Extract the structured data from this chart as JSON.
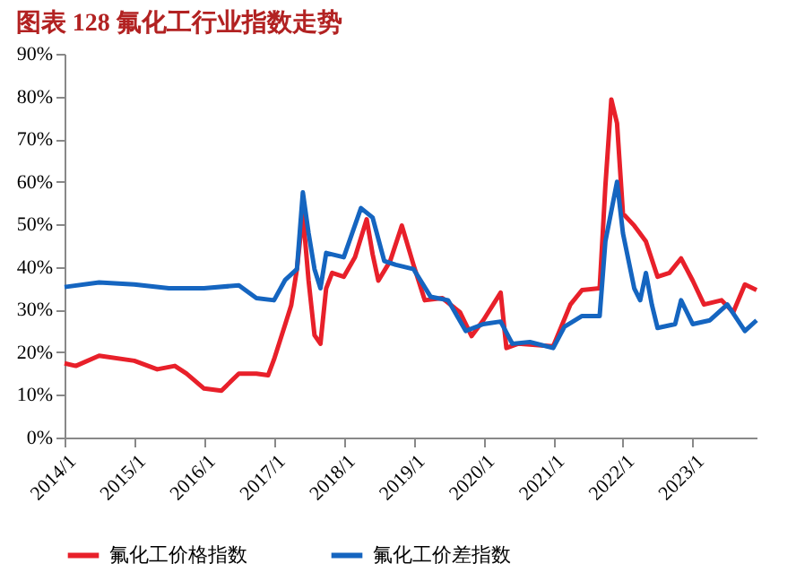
{
  "chart_data": {
    "type": "line",
    "title": "图表 128 氟化工行业指数走势",
    "xlim": [
      "2014-01",
      "2023-12"
    ],
    "xticks": [
      {
        "value": "2014-01",
        "label": "2014/1"
      },
      {
        "value": "2015-01",
        "label": "2015/1"
      },
      {
        "value": "2016-01",
        "label": "2016/1"
      },
      {
        "value": "2017-01",
        "label": "2017/1"
      },
      {
        "value": "2018-01",
        "label": "2018/1"
      },
      {
        "value": "2019-01",
        "label": "2019/1"
      },
      {
        "value": "2020-01",
        "label": "2020/1"
      },
      {
        "value": "2021-01",
        "label": "2021/1"
      },
      {
        "value": "2022-01",
        "label": "2022/1"
      },
      {
        "value": "2023-01",
        "label": "2023/1"
      }
    ],
    "ylim": [
      0,
      90
    ],
    "yticks": [
      {
        "value": 0,
        "label": "0%"
      },
      {
        "value": 10,
        "label": "10%"
      },
      {
        "value": 20,
        "label": "20%"
      },
      {
        "value": 30,
        "label": "30%"
      },
      {
        "value": 40,
        "label": "40%"
      },
      {
        "value": 50,
        "label": "50%"
      },
      {
        "value": 60,
        "label": "60%"
      },
      {
        "value": 70,
        "label": "70%"
      },
      {
        "value": 80,
        "label": "80%"
      },
      {
        "value": 90,
        "label": "90%"
      }
    ],
    "grid": false,
    "legend": "bottom",
    "marker": "none",
    "line_style": "solid",
    "series": [
      {
        "name": "氟化工价格指数",
        "color": "#e8202a",
        "x": [
          "2014-01",
          "2014-03",
          "2014-07",
          "2015-01",
          "2015-05",
          "2015-08",
          "2015-10",
          "2016-01",
          "2016-04",
          "2016-07",
          "2016-10",
          "2016-12",
          "2017-01",
          "2017-03",
          "2017-04",
          "2017-05",
          "2017-06",
          "2017-07",
          "2017-08",
          "2017-09",
          "2017-10",
          "2017-11",
          "2018-01",
          "2018-03",
          "2018-05",
          "2018-06",
          "2018-07",
          "2018-09",
          "2018-11",
          "2019-01",
          "2019-03",
          "2019-06",
          "2019-09",
          "2019-11",
          "2020-01",
          "2020-04",
          "2020-05",
          "2020-07",
          "2021-01",
          "2021-04",
          "2021-06",
          "2021-09",
          "2021-10",
          "2021-11",
          "2021-12",
          "2022-01",
          "2022-03",
          "2022-05",
          "2022-07",
          "2022-09",
          "2022-11",
          "2023-01",
          "2023-03",
          "2023-06",
          "2023-08",
          "2023-10",
          "2023-12"
        ],
        "values": [
          17.4,
          16.8,
          19.2,
          18,
          16,
          16.8,
          15,
          11.5,
          11,
          15,
          15,
          14.6,
          18.3,
          26.6,
          31,
          39.5,
          52.5,
          36.8,
          24,
          22,
          35,
          38.6,
          37.7,
          42.3,
          51.2,
          43,
          36.8,
          41.4,
          49.7,
          40.5,
          32.2,
          32.7,
          29.4,
          23.8,
          27.5,
          34,
          21,
          22,
          21.4,
          31.2,
          34.6,
          35,
          59,
          79.3,
          73.7,
          52.5,
          49.7,
          46,
          37.7,
          38.6,
          42,
          36.8,
          31.2,
          32.2,
          29.4,
          35.9,
          34.6
        ]
      },
      {
        "name": "氟化工价差指数",
        "color": "#1565c0",
        "x": [
          "2014-01",
          "2014-07",
          "2015-01",
          "2015-07",
          "2016-01",
          "2016-07",
          "2016-10",
          "2017-01",
          "2017-03",
          "2017-05",
          "2017-06",
          "2017-07",
          "2017-08",
          "2017-09",
          "2017-10",
          "2018-01",
          "2018-04",
          "2018-06",
          "2018-08",
          "2018-10",
          "2019-01",
          "2019-04",
          "2019-07",
          "2019-10",
          "2020-01",
          "2020-04",
          "2020-06",
          "2020-09",
          "2021-01",
          "2021-03",
          "2021-06",
          "2021-09",
          "2021-10",
          "2021-12",
          "2022-01",
          "2022-03",
          "2022-04",
          "2022-05",
          "2022-06",
          "2022-07",
          "2022-10",
          "2022-11",
          "2023-01",
          "2023-04",
          "2023-07",
          "2023-10",
          "2023-12"
        ],
        "values": [
          35.3,
          36.4,
          35.9,
          35,
          35,
          35.7,
          32.7,
          32.2,
          37,
          39.5,
          57.5,
          47.9,
          39.5,
          35,
          43.3,
          42.3,
          53.8,
          51.6,
          41.4,
          40.5,
          39.5,
          33,
          32.2,
          25,
          26.6,
          27.2,
          22,
          22.4,
          21,
          26,
          28.5,
          28.5,
          46,
          60,
          47.9,
          35,
          32.2,
          38.6,
          31.2,
          25.7,
          26.6,
          32.2,
          26.6,
          27.5,
          31.2,
          25,
          27.5
        ]
      }
    ]
  }
}
